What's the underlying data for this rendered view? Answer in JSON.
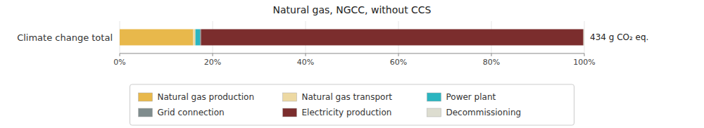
{
  "chart_data": {
    "type": "bar",
    "orientation": "horizontal",
    "stacked": true,
    "title": "Natural gas, NGCC, without CCS",
    "categories": [
      "Climate change total"
    ],
    "series": [
      {
        "name": "Natural gas production",
        "color": "#E8B84B",
        "values": [
          15.8
        ]
      },
      {
        "name": "Natural gas transport",
        "color": "#EDD9A3",
        "values": [
          0.5
        ]
      },
      {
        "name": "Power plant",
        "color": "#2BB5C0",
        "values": [
          1.0
        ]
      },
      {
        "name": "Grid connection",
        "color": "#7F8C8D",
        "values": [
          0.2
        ]
      },
      {
        "name": "Electricity production",
        "color": "#7B2D2D",
        "values": [
          82.3
        ]
      },
      {
        "name": "Decommissioning",
        "color": "#DDDDD0",
        "values": [
          0.2
        ]
      }
    ],
    "xlim": [
      0,
      100
    ],
    "xticks": [
      {
        "value": 0,
        "label": "0%"
      },
      {
        "value": 20,
        "label": "20%"
      },
      {
        "value": 40,
        "label": "40%"
      },
      {
        "value": 60,
        "label": "60%"
      },
      {
        "value": 80,
        "label": "80%"
      },
      {
        "value": 100,
        "label": "100%"
      }
    ],
    "annotation": "434 g CO₂ eq.",
    "legend": "bottom"
  }
}
